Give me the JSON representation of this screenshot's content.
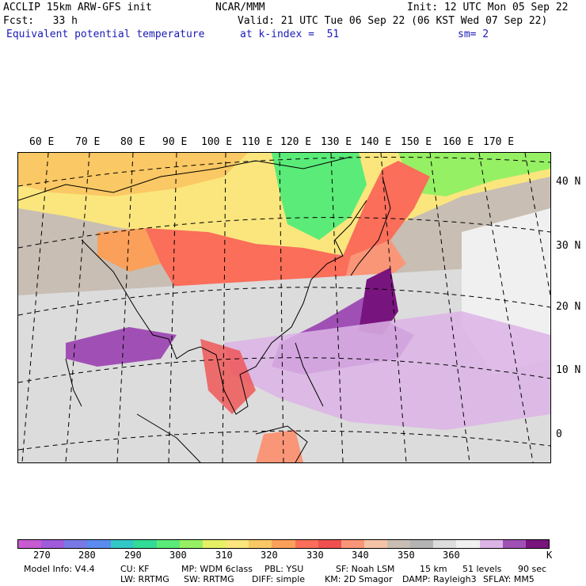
{
  "header": {
    "l1": "ACCLIP 15km ARW-GFS init",
    "l2": "Fcst:   33 h",
    "l3": "Equivalent potential temperature",
    "center1": "NCAR/MMM",
    "init": "Init: 12 UTC Mon 05 Sep 22",
    "valid": "Valid: 21 UTC Tue 06 Sep 22 (06 KST Wed 07 Sep 22)",
    "level": "at k-index =  51",
    "sm": "sm= 2"
  },
  "map": {
    "lon_labels": [
      "60 E",
      "70 E",
      "80 E",
      "90 E",
      "100 E",
      "110 E",
      "120 E",
      "130 E",
      "140 E",
      "150 E",
      "160 E",
      "170 E"
    ],
    "lat_labels": [
      "40 N",
      "30 N",
      "20 N",
      "10 N",
      "0"
    ]
  },
  "colorbar": {
    "colors": [
      "#c85ad2",
      "#a05adc",
      "#7878e6",
      "#5a8cf0",
      "#32c8c8",
      "#32dc96",
      "#5aeb78",
      "#96f064",
      "#e6f064",
      "#fae67d",
      "#fac864",
      "#faa05a",
      "#fa6e5a",
      "#f05050",
      "#fa9678",
      "#f5c3a5",
      "#c8beb4",
      "#b4b4b4",
      "#dcdcdc",
      "#f0f0f0",
      "#dcb4e6",
      "#a050b4",
      "#78147d"
    ],
    "ticks": [
      "270",
      "280",
      "290",
      "300",
      "310",
      "320",
      "330",
      "340",
      "350",
      "360",
      "K"
    ]
  },
  "footer": {
    "model": "Model Info: V4.4",
    "cu": "CU: KF",
    "mp": "MP: WDM 6class",
    "pbl": "PBL: YSU",
    "sf": "SF: Noah LSM",
    "res": "15 km",
    "levels": "51 levels",
    "dt": "90 sec",
    "lw": "LW: RRTMG",
    "sw": "SW: RRTMG",
    "diff": "DIFF: simple",
    "km": "KM: 2D Smagor",
    "damp": "DAMP: Rayleigh3",
    "sflay": "SFLAY: MM5"
  }
}
